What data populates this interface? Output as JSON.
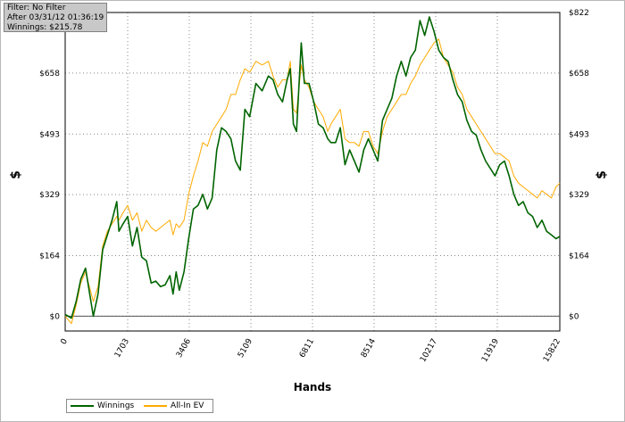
{
  "info": {
    "filter": "Filter: No Filter",
    "after": "After 03/31/12 01:36:19",
    "winnings": "Winnings: $215.78"
  },
  "legend": {
    "winnings_label": "Winnings",
    "allin_label": "All-In EV"
  },
  "chart_data": {
    "type": "line",
    "xlabel": "Hands",
    "ylabel_left": "$",
    "ylabel_right": "$",
    "xlim": [
      0,
      15822
    ],
    "ylim": [
      -40,
      822
    ],
    "x_ticks": [
      "0",
      "1703",
      "3406",
      "5109",
      "6811",
      "8514",
      "10217",
      "11919",
      "15822"
    ],
    "y_ticks": [
      "$0",
      "$164",
      "$329",
      "$493",
      "$658",
      "$822"
    ],
    "y_tick_values": [
      0,
      164,
      329,
      493,
      658,
      822
    ],
    "grid": true,
    "legend_position": "bottom-left",
    "colors": {
      "winnings": "#006400",
      "allin": "#ffaa00",
      "zero_line": "#555555"
    },
    "series": [
      {
        "name": "Winnings",
        "x": [
          0,
          200,
          350,
          500,
          650,
          900,
          1050,
          1200,
          1350,
          1500,
          1650,
          1720,
          1850,
          2000,
          2150,
          2300,
          2450,
          2600,
          2750,
          2900,
          3050,
          3200,
          3350,
          3450,
          3550,
          3650,
          3800,
          3950,
          4100,
          4250,
          4400,
          4550,
          4700,
          4850,
          5000,
          5150,
          5300,
          5450,
          5600,
          5750,
          5900,
          6100,
          6300,
          6500,
          6650,
          6800,
          6950,
          7100,
          7200,
          7300,
          7400,
          7550,
          7650,
          7800,
          7950,
          8100,
          8250,
          8400,
          8500,
          8650,
          8800,
          8950,
          9100,
          9250,
          9400,
          9550,
          9700,
          9850,
          10000,
          10150,
          10300,
          10450,
          10600,
          10750,
          10900,
          11050,
          11200,
          11350,
          11500,
          11650,
          11800,
          11950,
          12100,
          12250,
          12400,
          12550,
          12700,
          12850,
          13000,
          13150,
          13300,
          13450,
          13600,
          13750,
          13900,
          14050,
          14200,
          14350,
          14500,
          14650,
          14800,
          14950,
          15100,
          15250,
          15400,
          15550,
          15700,
          15822
        ],
        "values": [
          5,
          -5,
          40,
          100,
          130,
          0,
          60,
          180,
          220,
          260,
          310,
          230,
          250,
          270,
          190,
          240,
          160,
          150,
          90,
          95,
          80,
          85,
          110,
          60,
          120,
          70,
          120,
          210,
          290,
          300,
          330,
          290,
          320,
          450,
          510,
          500,
          480,
          420,
          395,
          560,
          540,
          630,
          610,
          650,
          640,
          600,
          580,
          640,
          670,
          520,
          500,
          740,
          630,
          630,
          580,
          520,
          510,
          480,
          470,
          470,
          510,
          410,
          450,
          420,
          390,
          450,
          480,
          450,
          420,
          530,
          560,
          590,
          650,
          690,
          650,
          700,
          720,
          800,
          760,
          810,
          770,
          720,
          700,
          690,
          640,
          600,
          580,
          530,
          500,
          490,
          450,
          420,
          400,
          380,
          410,
          420,
          380,
          330,
          300,
          310,
          280,
          270,
          240,
          260,
          230,
          220,
          210,
          215.78
        ]
      },
      {
        "name": "All-In EV",
        "x": [
          0,
          200,
          350,
          500,
          650,
          900,
          1050,
          1200,
          1350,
          1500,
          1650,
          1720,
          1850,
          2000,
          2150,
          2300,
          2450,
          2600,
          2750,
          2900,
          3050,
          3200,
          3350,
          3450,
          3550,
          3650,
          3800,
          3950,
          4100,
          4250,
          4400,
          4550,
          4700,
          4850,
          5000,
          5150,
          5300,
          5450,
          5600,
          5750,
          5900,
          6100,
          6300,
          6500,
          6650,
          6800,
          6950,
          7100,
          7200,
          7300,
          7400,
          7550,
          7650,
          7800,
          7950,
          8100,
          8250,
          8400,
          8500,
          8650,
          8800,
          8950,
          9100,
          9250,
          9400,
          9550,
          9700,
          9850,
          10000,
          10150,
          10300,
          10450,
          10600,
          10750,
          10900,
          11050,
          11200,
          11350,
          11500,
          11650,
          11800,
          11950,
          12100,
          12250,
          12400,
          12550,
          12700,
          12850,
          13000,
          13150,
          13300,
          13450,
          13600,
          13750,
          13900,
          14050,
          14200,
          14350,
          14500,
          14650,
          14800,
          14950,
          15100,
          15250,
          15400,
          15550,
          15700,
          15822
        ],
        "values": [
          0,
          -20,
          30,
          90,
          120,
          40,
          80,
          190,
          230,
          250,
          270,
          260,
          280,
          300,
          260,
          280,
          230,
          260,
          240,
          230,
          240,
          250,
          260,
          220,
          250,
          240,
          260,
          330,
          380,
          420,
          470,
          460,
          500,
          520,
          540,
          560,
          600,
          600,
          640,
          670,
          660,
          690,
          680,
          690,
          650,
          620,
          640,
          640,
          690,
          560,
          550,
          680,
          640,
          620,
          580,
          560,
          540,
          500,
          520,
          540,
          560,
          480,
          470,
          470,
          460,
          500,
          500,
          460,
          440,
          500,
          540,
          560,
          580,
          600,
          600,
          630,
          650,
          680,
          700,
          720,
          740,
          750,
          700,
          680,
          660,
          620,
          600,
          560,
          540,
          520,
          500,
          480,
          460,
          440,
          440,
          430,
          420,
          380,
          360,
          350,
          340,
          330,
          320,
          340,
          330,
          320,
          350,
          360
        ]
      }
    ]
  }
}
